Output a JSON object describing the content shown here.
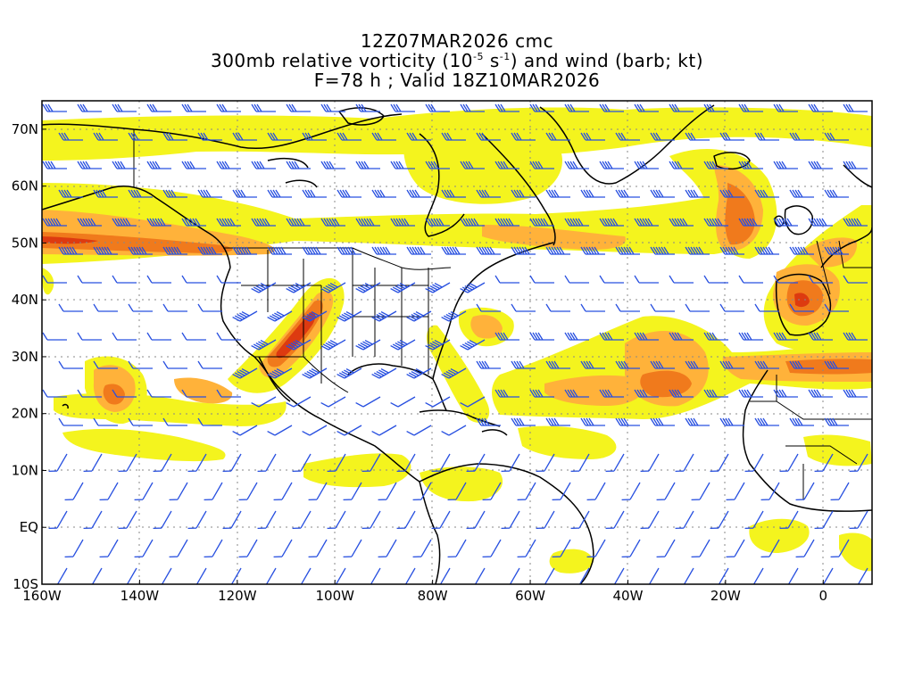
{
  "header": {
    "line1": "12Z07MAR2026 cmc",
    "line2_prefix": "300mb relative vorticity (10",
    "line2_exp1": "-5",
    "line2_mid": " s",
    "line2_exp2": "-1",
    "line2_suffix": ") and wind (barb; kt)",
    "line3": "F=78 h ; Valid 18Z10MAR2026"
  },
  "axes": {
    "lon_labels": [
      "160W",
      "140W",
      "120W",
      "100W",
      "80W",
      "60W",
      "40W",
      "20W",
      "0"
    ],
    "lat_labels": [
      "70N",
      "60N",
      "50N",
      "40N",
      "30N",
      "20N",
      "10N",
      "EQ",
      "10S"
    ],
    "lon_range": [
      -160,
      10
    ],
    "lat_range": [
      -10,
      75
    ],
    "grid": "dotted"
  },
  "colors": {
    "low": "#f4f41e",
    "mid": "#ffb23a",
    "high": "#f07a1c",
    "peak": "#dd3a10",
    "barb": "#2850e0",
    "coast": "#000000"
  }
}
